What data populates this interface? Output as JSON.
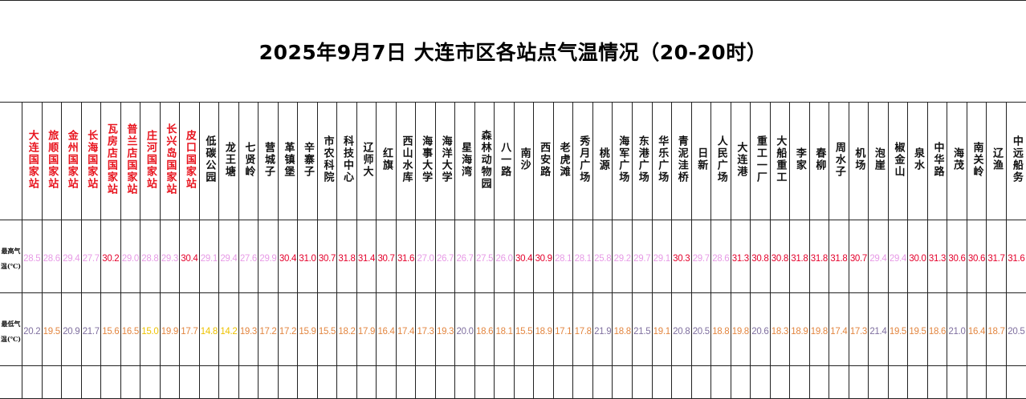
{
  "title": "2025年9月7日 大连市区各站点气温情况（20-20时）",
  "row_labels": {
    "max": "最高气温(℃)",
    "min": "最低气温(℃)"
  },
  "colors": {
    "national_station_name": "#e8141e",
    "regular_station_name": "#111111",
    "max_ge_30": "#e4002b",
    "max_lt_30": "#e79be6",
    "min_ge_20": "#7f6f9f",
    "min_15_5_to_19_9": "#e38640",
    "min_le_15": "#eec200"
  },
  "stations": [
    {
      "name": "大连国家站",
      "national": true,
      "max": "28.5",
      "min": "20.2"
    },
    {
      "name": "旅顺国家站",
      "national": true,
      "max": "28.6",
      "min": "19.5"
    },
    {
      "name": "金州国家站",
      "national": true,
      "max": "29.4",
      "min": "20.9"
    },
    {
      "name": "长海国家站",
      "national": true,
      "max": "27.7",
      "min": "21.7"
    },
    {
      "name": "瓦房店国家站",
      "national": true,
      "max": "30.2",
      "min": "15.6"
    },
    {
      "name": "普兰店国家站",
      "national": true,
      "max": "29.0",
      "min": "16.5"
    },
    {
      "name": "庄河国家站",
      "national": true,
      "max": "28.8",
      "min": "15.0"
    },
    {
      "name": "长兴岛国家站",
      "national": true,
      "max": "29.3",
      "min": "19.9"
    },
    {
      "name": "皮口国家站",
      "national": true,
      "max": "30.4",
      "min": "17.7"
    },
    {
      "name": "低碳公园",
      "national": false,
      "max": "29.1",
      "min": "14.8"
    },
    {
      "name": "龙王塘",
      "national": false,
      "max": "29.4",
      "min": "14.2"
    },
    {
      "name": "七贤岭",
      "national": false,
      "max": "27.6",
      "min": "19.3"
    },
    {
      "name": "营城子",
      "national": false,
      "max": "29.9",
      "min": "17.2"
    },
    {
      "name": "革镇堡",
      "national": false,
      "max": "30.4",
      "min": "17.2"
    },
    {
      "name": "辛寨子",
      "national": false,
      "max": "31.0",
      "min": "15.9"
    },
    {
      "name": "市农科院",
      "national": false,
      "max": "30.7",
      "min": "15.5"
    },
    {
      "name": "科技中心",
      "national": false,
      "max": "31.8",
      "min": "18.2"
    },
    {
      "name": "辽师大",
      "national": false,
      "max": "31.4",
      "min": "17.9"
    },
    {
      "name": "红旗",
      "national": false,
      "max": "30.7",
      "min": "16.4"
    },
    {
      "name": "西山水库",
      "national": false,
      "max": "31.6",
      "min": "17.4"
    },
    {
      "name": "海事大学",
      "national": false,
      "max": "27.0",
      "min": "17.3"
    },
    {
      "name": "海洋大学",
      "national": false,
      "max": "26.7",
      "min": "19.3"
    },
    {
      "name": "星海湾",
      "national": false,
      "max": "26.7",
      "min": "20.0"
    },
    {
      "name": "森林动物园",
      "national": false,
      "max": "27.5",
      "min": "18.6"
    },
    {
      "name": "八一路",
      "national": false,
      "max": "26.0",
      "min": "18.1"
    },
    {
      "name": "南沙",
      "national": false,
      "max": "30.4",
      "min": "15.5"
    },
    {
      "name": "西安路",
      "national": false,
      "max": "30.9",
      "min": "18.9"
    },
    {
      "name": "老虎滩",
      "national": false,
      "max": "28.1",
      "min": "17.1"
    },
    {
      "name": "秀月广场",
      "national": false,
      "max": "28.1",
      "min": "17.8"
    },
    {
      "name": "桃源",
      "national": false,
      "max": "25.8",
      "min": "21.9"
    },
    {
      "name": "海军广场",
      "national": false,
      "max": "29.2",
      "min": "18.8"
    },
    {
      "name": "东港广场",
      "national": false,
      "max": "29.7",
      "min": "21.5"
    },
    {
      "name": "华乐广场",
      "national": false,
      "max": "29.1",
      "min": "19.1"
    },
    {
      "name": "青泥洼桥",
      "national": false,
      "max": "30.3",
      "min": "20.8"
    },
    {
      "name": "日新",
      "national": false,
      "max": "29.7",
      "min": "20.5"
    },
    {
      "name": "人民广场",
      "national": false,
      "max": "28.6",
      "min": "18.8"
    },
    {
      "name": "大连港",
      "national": false,
      "max": "31.3",
      "min": "19.8"
    },
    {
      "name": "重工一厂",
      "national": false,
      "max": "30.8",
      "min": "20.6"
    },
    {
      "name": "大船重工",
      "national": false,
      "max": "30.8",
      "min": "18.3"
    },
    {
      "name": "李家",
      "national": false,
      "max": "31.8",
      "min": "18.9"
    },
    {
      "name": "春柳",
      "national": false,
      "max": "31.8",
      "min": "19.8"
    },
    {
      "name": "周水子",
      "national": false,
      "max": "31.8",
      "min": "17.4"
    },
    {
      "name": "机场",
      "national": false,
      "max": "30.7",
      "min": "17.3"
    },
    {
      "name": "泡崖",
      "national": false,
      "max": "29.4",
      "min": "21.4"
    },
    {
      "name": "椒金山",
      "national": false,
      "max": "29.4",
      "min": "19.5"
    },
    {
      "name": "泉水",
      "national": false,
      "max": "30.0",
      "min": "19.5"
    },
    {
      "name": "中华路",
      "national": false,
      "max": "31.3",
      "min": "18.6"
    },
    {
      "name": "海茂",
      "national": false,
      "max": "30.6",
      "min": "21.0"
    },
    {
      "name": "南关岭",
      "national": false,
      "max": "30.6",
      "min": "16.4"
    },
    {
      "name": "辽渔",
      "national": false,
      "max": "31.7",
      "min": "18.7"
    },
    {
      "name": "中远船务",
      "national": false,
      "max": "31.6",
      "min": "20.5"
    }
  ]
}
